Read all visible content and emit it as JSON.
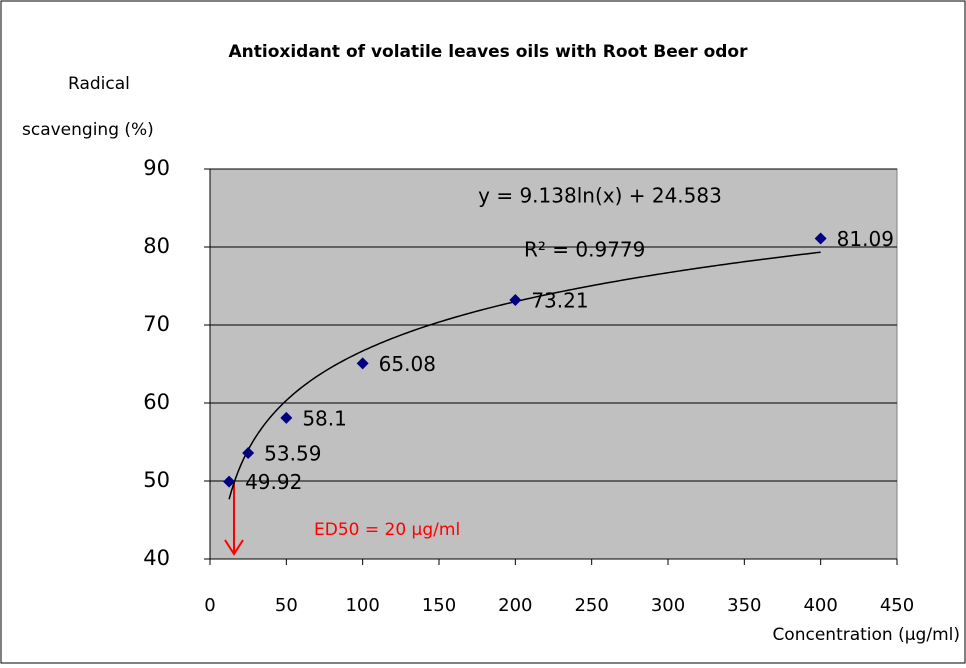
{
  "chart_data": {
    "type": "scatter",
    "title": "Antioxidant of volatile leaves oils with Root Beer odor",
    "ylabel": [
      "Radical",
      "scavenging (%)"
    ],
    "xlabel": "Concentration (µg/ml)",
    "x": [
      12.5,
      25,
      50,
      100,
      200,
      400
    ],
    "series": [
      {
        "name": "Radical scavenging",
        "color": "#000080",
        "values": [
          49.92,
          53.59,
          58.1,
          65.08,
          73.21,
          81.09
        ]
      }
    ],
    "xlim": [
      0,
      450
    ],
    "xticks": [
      0,
      50,
      100,
      150,
      200,
      250,
      300,
      350,
      400,
      450
    ],
    "ylim": [
      40,
      90
    ],
    "yticks": [
      40,
      50,
      60,
      70,
      80,
      90
    ],
    "grid": true,
    "trendline": {
      "equation": "y = 9.138ln(x) + 24.583",
      "r_squared_label": "R² = 0.9779",
      "slope": 9.138,
      "intercept": 24.583
    },
    "annotation": "ED50 = 20 µg/ml"
  }
}
